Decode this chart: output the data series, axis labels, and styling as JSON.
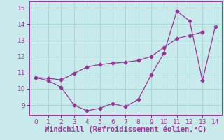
{
  "line1_x": [
    0,
    1,
    2,
    3,
    4,
    5,
    6,
    7,
    8,
    9,
    10,
    11,
    12,
    13,
    14
  ],
  "line1_y": [
    10.7,
    10.5,
    10.1,
    9.0,
    8.65,
    8.8,
    9.1,
    8.9,
    9.35,
    10.85,
    12.2,
    14.8,
    14.2,
    10.5,
    13.85
  ],
  "line2_x": [
    0,
    1,
    2,
    3,
    4,
    5,
    6,
    7,
    8,
    9,
    10,
    11,
    12,
    13
  ],
  "line2_y": [
    10.7,
    10.65,
    10.55,
    10.95,
    11.35,
    11.5,
    11.58,
    11.65,
    11.75,
    12.0,
    12.55,
    13.1,
    13.3,
    13.5
  ],
  "line_color": "#993399",
  "marker": "D",
  "markersize": 2.5,
  "linewidth": 0.9,
  "xlabel": "Windchill (Refroidissement éolien,°C)",
  "xlabel_fontsize": 7.5,
  "xlabel_color": "#993399",
  "ylabel_ticks": [
    9,
    10,
    11,
    12,
    13,
    14,
    15
  ],
  "xticks": [
    0,
    1,
    2,
    3,
    4,
    5,
    6,
    7,
    8,
    9,
    10,
    11,
    12,
    13,
    14
  ],
  "xlim": [
    -0.5,
    14.5
  ],
  "ylim": [
    8.4,
    15.4
  ],
  "background_color": "#c8eaea",
  "grid_color": "#a8d8d8",
  "tick_color": "#993399",
  "tick_fontsize": 6.5,
  "spine_color": "#993399"
}
